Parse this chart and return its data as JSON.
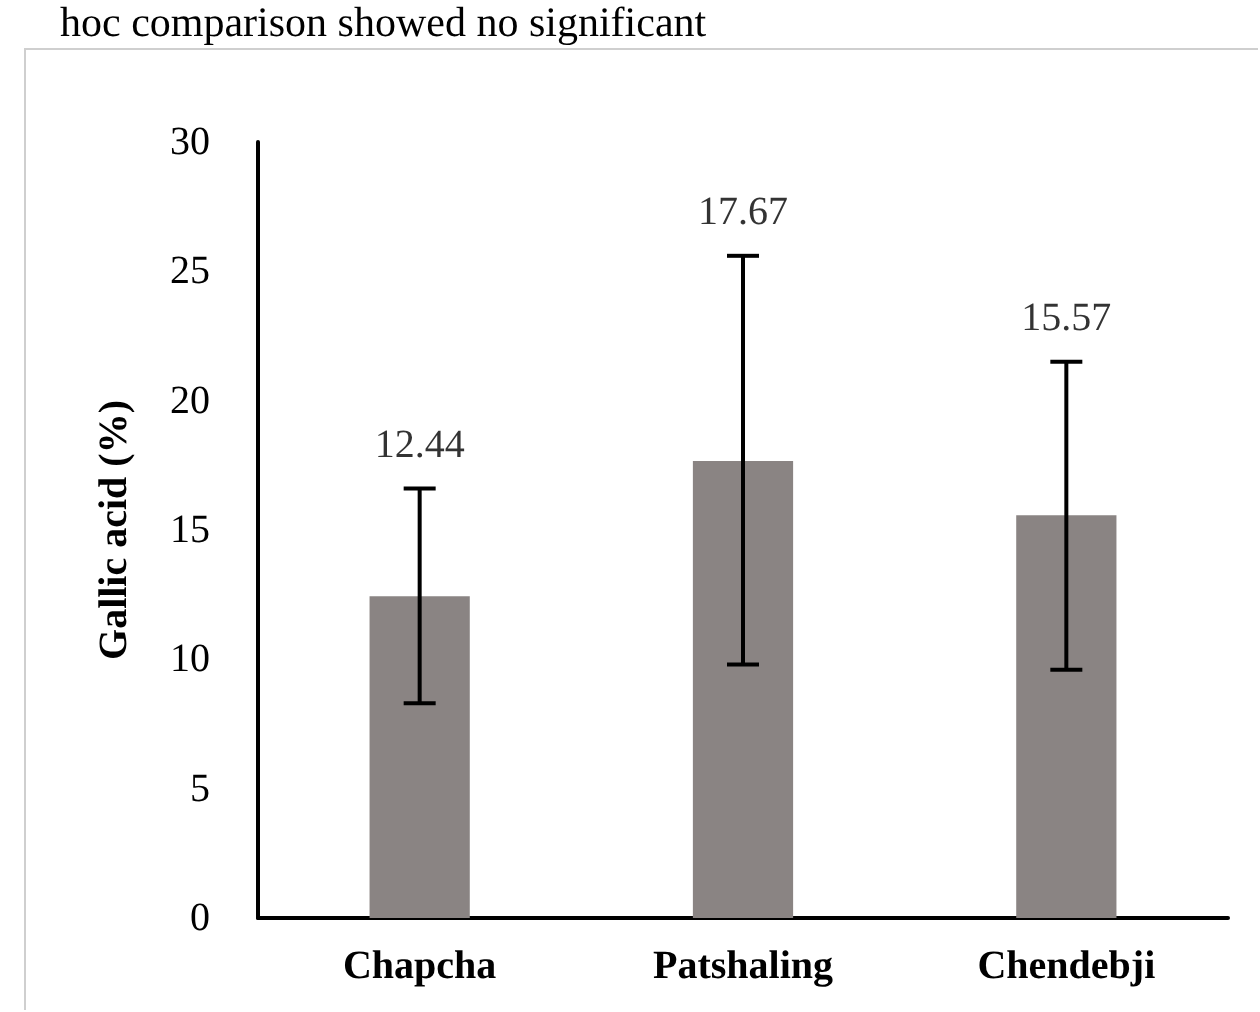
{
  "chart_data": {
    "type": "bar",
    "ylabel": "Gallic acid (%)",
    "annotations": [
      "hoc comparison showed no significant",
      {
        "text": "12.44",
        "x": "Chapcha",
        "y": 16.6
      },
      {
        "text": "17.67",
        "x": "Patshaling",
        "y": 25.6
      },
      {
        "text": "15.57",
        "x": "Chendebji",
        "y": 21.5
      }
    ],
    "categories": [
      "Chapcha",
      "Patshaling",
      "Chendebji"
    ],
    "values": [
      12.44,
      17.67,
      15.57
    ],
    "color": "#8a8483",
    "errors": [
      [
        8.3,
        16.6
      ],
      [
        9.8,
        25.6
      ],
      [
        9.6,
        21.5
      ]
    ],
    "ylim": [
      0,
      30
    ],
    "yticks": [
      0,
      5,
      10,
      15,
      20,
      25,
      30
    ],
    "grid": false
  }
}
